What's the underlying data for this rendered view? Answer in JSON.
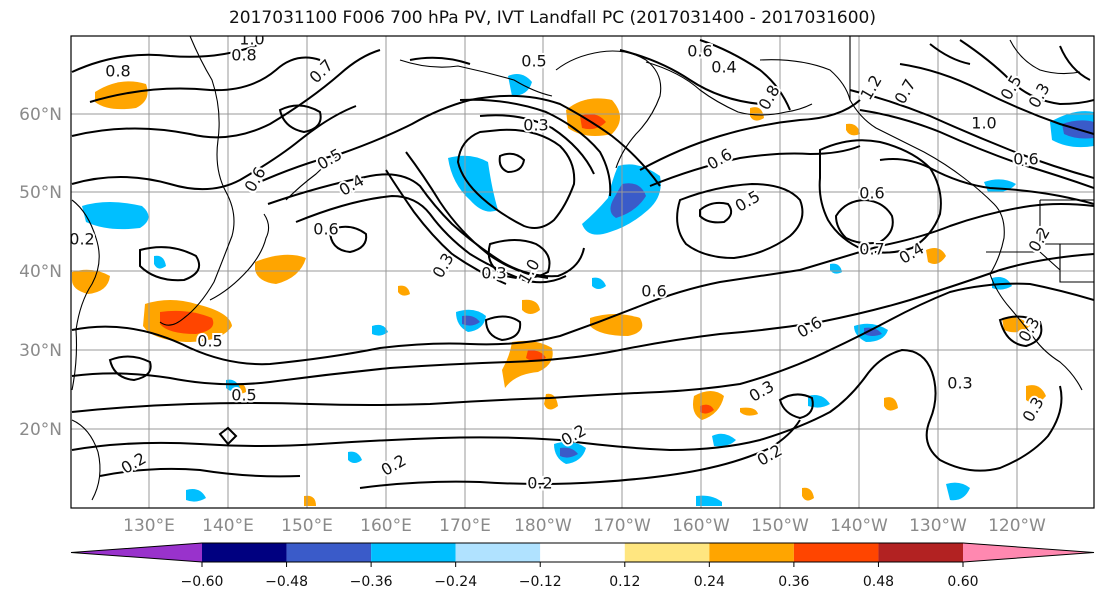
{
  "title": "2017031100 F006 700 hPa PV, IVT Landfall PC (2017031400 - 2017031600)",
  "lat_labels": [
    "60°N",
    "50°N",
    "40°N",
    "30°N",
    "20°N"
  ],
  "lon_labels": [
    "130°E",
    "140°E",
    "150°E",
    "160°E",
    "170°E",
    "180°W",
    "170°W",
    "160°W",
    "150°W",
    "140°W",
    "130°W",
    "120°W"
  ],
  "contour_labels": [
    "1.0",
    "0.8",
    "0.8",
    "0.7",
    "0.5",
    "0.6",
    "0.4",
    "0.8",
    "1.2",
    "0.7",
    "0.5",
    "1.0",
    "0.6",
    "0.3",
    "0.6",
    "0.5",
    "0.4",
    "0.6",
    "0.5",
    "0.6",
    "0.7",
    "0.4",
    "0.3",
    "0.3",
    "1.0",
    "0.6",
    "0.6",
    "0.5",
    "0.5",
    "0.3",
    "0.2",
    "0.2",
    "0.2",
    "0.2",
    "0.2",
    "0.2",
    "0.3",
    "0.3",
    "0.3",
    "0.6",
    "0.3",
    "0.2"
  ],
  "colorbar": {
    "levels": [
      "−0.60",
      "−0.48",
      "−0.36",
      "−0.24",
      "−0.12",
      "0.12",
      "0.24",
      "0.36",
      "0.48",
      "0.60"
    ],
    "colors": [
      "#9932cc",
      "#000080",
      "#3a5bc9",
      "#00bfff",
      "#b0e2ff",
      "#ffffff",
      "#ffe680",
      "#ffa500",
      "#ff4500",
      "#b22222",
      "#ff88b0"
    ]
  },
  "colors": {
    "land": "#000000",
    "contour": "#000000",
    "grid": "#999999"
  }
}
